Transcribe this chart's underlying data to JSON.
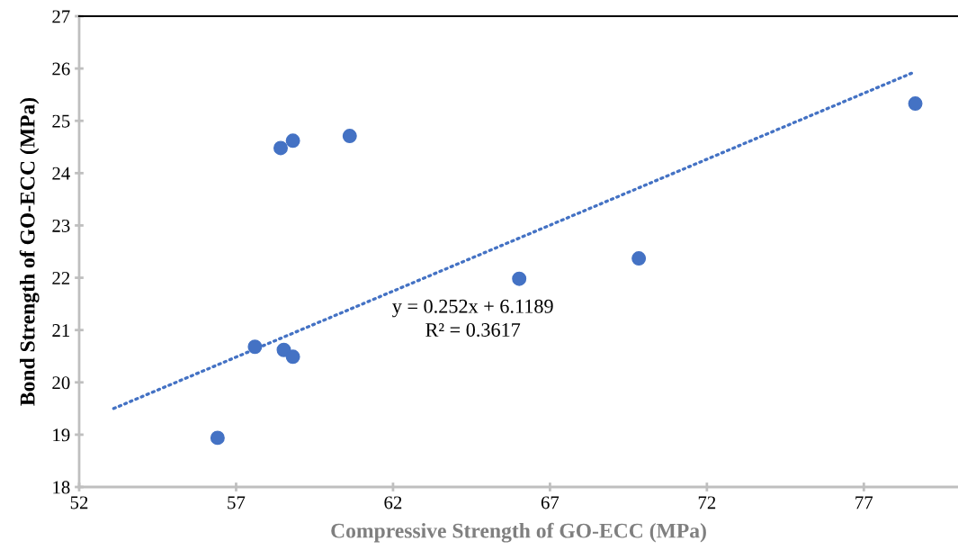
{
  "chart_data": {
    "type": "scatter",
    "xlabel": "Compressive Strength of GO-ECC (MPa)",
    "ylabel": "Bond Strength of GO-ECC (MPa)",
    "xlim": [
      52,
      80
    ],
    "xticks": [
      52,
      57,
      62,
      67,
      72,
      77
    ],
    "ylim": [
      18,
      27
    ],
    "yticks": [
      18,
      19,
      20,
      21,
      22,
      23,
      24,
      25,
      26,
      27
    ],
    "grid": false,
    "series": [
      {
        "marker": "circle",
        "color": "#4472c4",
        "x": [
          56.41,
          57.6,
          58.42,
          58.81,
          60.62,
          58.52,
          58.81,
          66.02,
          69.83,
          78.64
        ],
        "values": [
          18.94,
          20.68,
          24.48,
          24.62,
          24.71,
          20.62,
          20.49,
          21.98,
          22.37,
          25.33
        ]
      },
      {
        "type": "line",
        "color": "#4472c4",
        "line_style": "dotted",
        "x": [
          53.1,
          78.6
        ],
        "values": [
          19.5,
          25.93
        ]
      }
    ],
    "annotations": [
      "y = 0.252x + 6.1189",
      "R² = 0.3617"
    ]
  }
}
